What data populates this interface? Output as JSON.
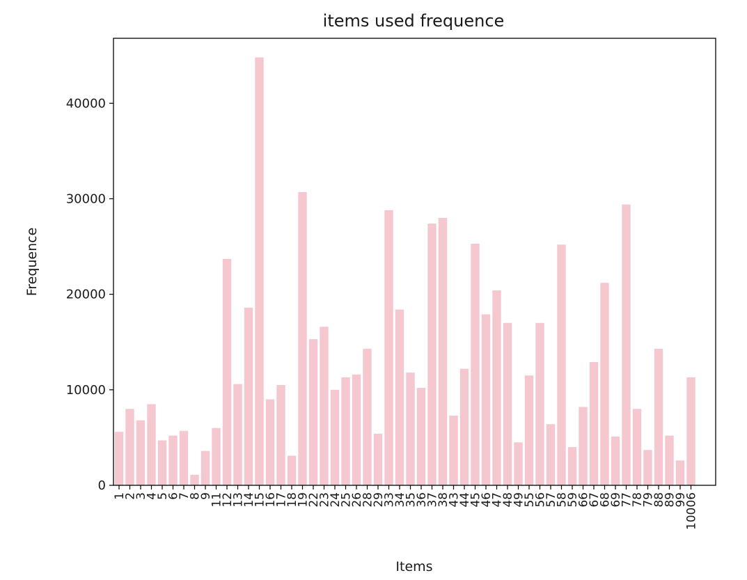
{
  "chart_data": {
    "type": "bar",
    "title": "items used frequence",
    "xlabel": "Items",
    "ylabel": "Frequence",
    "ylim": [
      0,
      46800
    ],
    "yticks": [
      0,
      10000,
      20000,
      30000,
      40000
    ],
    "ytick_labels": [
      "0",
      "10000",
      "20000",
      "30000",
      "40000"
    ],
    "grid": false,
    "bar_color": "#f5c7cf",
    "categories": [
      "1",
      "2",
      "3",
      "4",
      "5",
      "6",
      "7",
      "8",
      "9",
      "11",
      "12",
      "13",
      "14",
      "15",
      "16",
      "17",
      "18",
      "19",
      "22",
      "23",
      "24",
      "25",
      "26",
      "28",
      "29",
      "33",
      "34",
      "35",
      "36",
      "37",
      "38",
      "43",
      "44",
      "45",
      "46",
      "47",
      "48",
      "49",
      "55",
      "56",
      "57",
      "58",
      "59",
      "66",
      "67",
      "68",
      "69",
      "77",
      "78",
      "79",
      "88",
      "89",
      "99",
      "10006"
    ],
    "tick_labels": [
      "1",
      "2",
      "3",
      "4",
      "5",
      "6",
      "7",
      "8",
      "9",
      "11",
      "12",
      "13",
      "14",
      "15",
      "16",
      "17",
      "18",
      "19",
      "22",
      "23",
      "24",
      "25",
      "26",
      "28",
      "29",
      "33",
      "34",
      "35",
      "36",
      "37",
      "38",
      "43",
      "44",
      "45",
      "46",
      "47",
      "48",
      "49",
      "55",
      "56",
      "57",
      "58",
      "59",
      "66",
      "67",
      "68",
      "69",
      "77",
      "78",
      "79",
      "88",
      "89",
      "99",
      "10006"
    ],
    "values": [
      5600,
      8000,
      6800,
      8500,
      4700,
      5200,
      5700,
      1100,
      3600,
      6000,
      23700,
      10600,
      18600,
      44800,
      9000,
      10500,
      3100,
      30700,
      15300,
      16600,
      10000,
      11300,
      11600,
      14300,
      5400,
      28800,
      18400,
      11800,
      10200,
      27400,
      28000,
      7300,
      12200,
      25300,
      17900,
      20400,
      17000,
      4500,
      11500,
      17000,
      6400,
      25200,
      4000,
      8200,
      12900,
      21200,
      5100,
      29400,
      8000,
      3700,
      14300,
      5200,
      2600,
      11300
    ]
  }
}
